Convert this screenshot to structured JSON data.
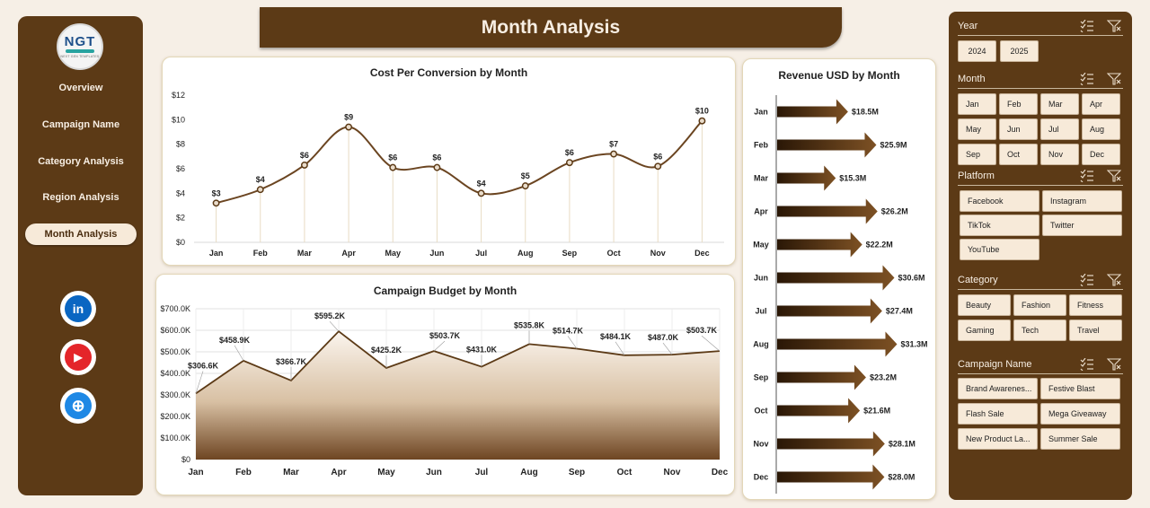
{
  "sidebar": {
    "logo": {
      "text": "NGT",
      "subtext": "NEXT GEN TEMPLATES"
    },
    "nav": [
      "Overview",
      "Campaign Name",
      "Category Analysis",
      "Region Analysis",
      "Month Analysis"
    ],
    "active": "Month Analysis",
    "social": [
      {
        "icon": "linkedin-icon",
        "glyph": "in",
        "color": "#0a66c2"
      },
      {
        "icon": "youtube-icon",
        "glyph": "▶",
        "color": "#e4252a"
      },
      {
        "icon": "globe-icon",
        "glyph": "⊕",
        "color": "#1e88e5"
      }
    ]
  },
  "header": {
    "title": "Month Analysis"
  },
  "colors": {
    "brown": "#5c3a16",
    "cream": "#f7ead9",
    "page": "#f6efe6"
  },
  "filters": {
    "year": {
      "title": "Year",
      "options": [
        "2024",
        "2025"
      ]
    },
    "month": {
      "title": "Month",
      "options": [
        "Jan",
        "Feb",
        "Mar",
        "Apr",
        "May",
        "Jun",
        "Jul",
        "Aug",
        "Sep",
        "Oct",
        "Nov",
        "Dec"
      ]
    },
    "platform": {
      "title": "Platform",
      "options": [
        "Facebook",
        "Instagram",
        "TikTok",
        "Twitter",
        "YouTube"
      ]
    },
    "category": {
      "title": "Category",
      "options": [
        "Beauty",
        "Fashion",
        "Fitness",
        "Gaming",
        "Tech",
        "Travel"
      ]
    },
    "campaign": {
      "title": "Campaign Name",
      "options": [
        "Brand Awarenes...",
        "Festive Blast",
        "Flash Sale",
        "Mega Giveaway",
        "New Product La...",
        "Summer Sale"
      ]
    }
  },
  "chart_data": [
    {
      "type": "line",
      "title": "Cost Per Conversion by Month",
      "categories": [
        "Jan",
        "Feb",
        "Mar",
        "Apr",
        "May",
        "Jun",
        "Jul",
        "Aug",
        "Sep",
        "Oct",
        "Nov",
        "Dec"
      ],
      "values": [
        3.2,
        4.3,
        6.3,
        9.4,
        6.1,
        6.1,
        4.0,
        4.6,
        6.5,
        7.2,
        6.2,
        9.9
      ],
      "data_labels": [
        "$3",
        "$4",
        "$6",
        "$9",
        "$6",
        "$6",
        "$4",
        "$5",
        "$6",
        "$7",
        "$6",
        "$10"
      ],
      "y_ticks": [
        "$0",
        "$2",
        "$4",
        "$6",
        "$8",
        "$10",
        "$12"
      ],
      "ylim": [
        0,
        12
      ],
      "smooth": true
    },
    {
      "type": "area",
      "title": "Campaign Budget by Month",
      "categories": [
        "Jan",
        "Feb",
        "Mar",
        "Apr",
        "May",
        "Jun",
        "Jul",
        "Aug",
        "Sep",
        "Oct",
        "Nov",
        "Dec"
      ],
      "values": [
        306.6,
        458.9,
        366.7,
        595.2,
        425.2,
        503.7,
        431.0,
        535.8,
        514.7,
        484.1,
        487.0,
        503.7
      ],
      "data_labels": [
        "$306.6K",
        "$458.9K",
        "$366.7K",
        "$595.2K",
        "$425.2K",
        "$503.7K",
        "$431.0K",
        "$535.8K",
        "$514.7K",
        "$484.1K",
        "$487.0K",
        "$503.7K"
      ],
      "y_ticks": [
        "$0",
        "$100.0K",
        "$200.0K",
        "$300.0K",
        "$400.0K",
        "$500.0K",
        "$600.0K",
        "$700.0K"
      ],
      "ylim": [
        0,
        700
      ],
      "grid": true
    },
    {
      "type": "bar",
      "orientation": "horizontal",
      "title": "Revenue USD by Month",
      "categories": [
        "Jan",
        "Feb",
        "Mar",
        "Apr",
        "May",
        "Jun",
        "Jul",
        "Aug",
        "Sep",
        "Oct",
        "Nov",
        "Dec"
      ],
      "values": [
        18.5,
        25.9,
        15.3,
        26.2,
        22.2,
        30.6,
        27.4,
        31.3,
        23.2,
        21.6,
        28.1,
        28.0
      ],
      "data_labels": [
        "$18.5M",
        "$25.9M",
        "$15.3M",
        "$26.2M",
        "$22.2M",
        "$30.6M",
        "$27.4M",
        "$31.3M",
        "$23.2M",
        "$21.6M",
        "$28.1M",
        "$28.0M"
      ]
    }
  ]
}
